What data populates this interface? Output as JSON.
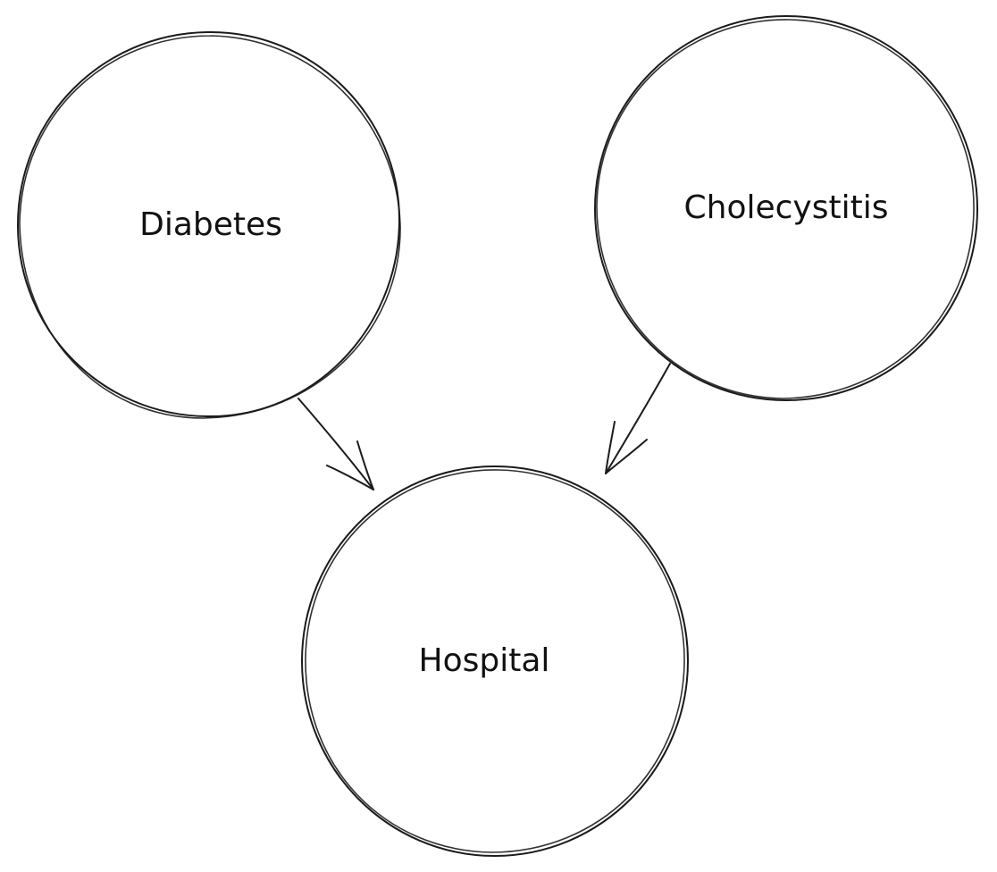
{
  "diagram": {
    "nodes": [
      {
        "id": "diabetes",
        "label": "Diabetes"
      },
      {
        "id": "cholecystitis",
        "label": "Cholecystitis"
      },
      {
        "id": "hospital",
        "label": "Hospital"
      }
    ],
    "edges": [
      {
        "from": "diabetes",
        "to": "hospital"
      },
      {
        "from": "cholecystitis",
        "to": "hospital"
      }
    ]
  }
}
